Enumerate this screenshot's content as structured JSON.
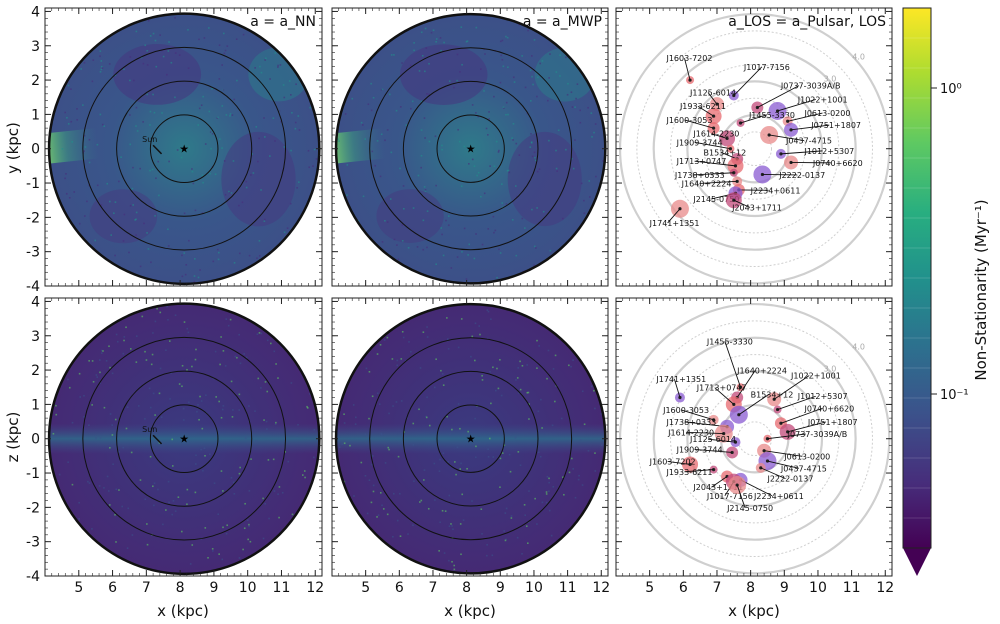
{
  "figure": {
    "xlabel": "x (kpc)",
    "ylabel_top": "y (kpc)",
    "ylabel_bottom": "z (kpc)",
    "colorbar_label": "Non-Stationarity (Myr⁻¹)",
    "colorbar_ticks": [
      "10⁰",
      "10⁻¹"
    ],
    "panel_titles": [
      "a = a_NN",
      "a = a_MWP",
      "a_LOS = a_Pulsar, LOS"
    ],
    "sun_label_panel_top": "Sun",
    "sun_label_panel_bottom": "Sun",
    "ring_labels": [
      "4.0",
      "3.0"
    ]
  },
  "chart_data": [
    {
      "type": "heatmap",
      "panel": "top-left",
      "title": "a = a_NN",
      "xlabel": "",
      "ylabel": "y (kpc)",
      "xlim": [
        4,
        12.2
      ],
      "ylim": [
        -4,
        4.1
      ],
      "xticks": [
        5,
        6,
        7,
        8,
        9,
        10,
        11,
        12
      ],
      "yticks": [
        -4,
        -3,
        -2,
        -1,
        0,
        1,
        2,
        3,
        4
      ],
      "center_star": [
        8.12,
        0
      ],
      "ring_radii_kpc": [
        1,
        2,
        3,
        4
      ],
      "colormap": "viridis",
      "colormap_stops": [
        "#440154",
        "#472d7b",
        "#3b528b",
        "#2c728e",
        "#21918c",
        "#28ae80",
        "#5ec962",
        "#addc30",
        "#fde725"
      ]
    },
    {
      "type": "heatmap",
      "panel": "top-middle",
      "title": "a = a_MWP",
      "xlim": [
        4,
        12.2
      ],
      "ylim": [
        -4,
        4.1
      ],
      "xticks": [
        5,
        6,
        7,
        8,
        9,
        10,
        11,
        12
      ],
      "center_star": [
        8.12,
        0
      ],
      "ring_radii_kpc": [
        1,
        2,
        3,
        4
      ]
    },
    {
      "type": "scatter",
      "panel": "top-right",
      "title": "a_LOS = a_Pulsar, LOS",
      "xlim": [
        4,
        12.2
      ],
      "ylim": [
        -4,
        4.1
      ],
      "xticks": [
        5,
        6,
        7,
        8,
        9,
        10,
        11,
        12
      ],
      "pulsars": [
        {
          "name": "J1603-7202",
          "x": 6.2,
          "y": 2.0,
          "lx": 5.5,
          "ly": 2.55
        },
        {
          "name": "J1017-7156",
          "x": 7.5,
          "y": 1.55,
          "lx": 7.8,
          "ly": 2.3
        },
        {
          "name": "J0737-3039A/B",
          "x": 8.2,
          "y": 1.2,
          "lx": 8.9,
          "ly": 1.75
        },
        {
          "name": "J1125-6014",
          "x": 7.0,
          "y": 1.3,
          "lx": 6.2,
          "ly": 1.55
        },
        {
          "name": "J1933-6211",
          "x": 6.9,
          "y": 0.95,
          "lx": 5.9,
          "ly": 1.15
        },
        {
          "name": "J1022+1001",
          "x": 8.8,
          "y": 1.1,
          "lx": 9.4,
          "ly": 1.35
        },
        {
          "name": "J1455-3330",
          "x": 7.7,
          "y": 0.75,
          "lx": 7.95,
          "ly": 0.9
        },
        {
          "name": "J0613-0200",
          "x": 9.1,
          "y": 0.8,
          "lx": 9.6,
          "ly": 0.95
        },
        {
          "name": "J1600-3053",
          "x": 6.9,
          "y": 0.6,
          "lx": 5.5,
          "ly": 0.75
        },
        {
          "name": "J0751+1807",
          "x": 9.2,
          "y": 0.55,
          "lx": 9.8,
          "ly": 0.6
        },
        {
          "name": "J1614-2230",
          "x": 7.3,
          "y": 0.3,
          "lx": 6.3,
          "ly": 0.35
        },
        {
          "name": "J0437-4715",
          "x": 8.55,
          "y": 0.4,
          "lx": 9.05,
          "ly": 0.15
        },
        {
          "name": "J1909-3744",
          "x": 7.4,
          "y": 0.0,
          "lx": 5.8,
          "ly": 0.1
        },
        {
          "name": "J1012+5307",
          "x": 8.9,
          "y": -0.15,
          "lx": 9.6,
          "ly": -0.15
        },
        {
          "name": "B1534+12",
          "x": 7.6,
          "y": -0.3,
          "lx": 6.6,
          "ly": -0.2
        },
        {
          "name": "J0740+6620",
          "x": 9.2,
          "y": -0.4,
          "lx": 9.85,
          "ly": -0.5
        },
        {
          "name": "J1713+0747",
          "x": 7.55,
          "y": -0.5,
          "lx": 5.8,
          "ly": -0.45
        },
        {
          "name": "J2222-0137",
          "x": 8.35,
          "y": -0.75,
          "lx": 8.85,
          "ly": -0.85
        },
        {
          "name": "J1738+0333",
          "x": 7.5,
          "y": -0.7,
          "lx": 5.75,
          "ly": -0.85
        },
        {
          "name": "J1640+2224",
          "x": 7.6,
          "y": -0.95,
          "lx": 5.95,
          "ly": -1.1
        },
        {
          "name": "J2234+0611",
          "x": 7.65,
          "y": -1.2,
          "lx": 8.0,
          "ly": -1.3
        },
        {
          "name": "J2145-0750",
          "x": 7.55,
          "y": -1.3,
          "lx": 6.3,
          "ly": -1.55
        },
        {
          "name": "J2043+1711",
          "x": 7.5,
          "y": -1.5,
          "lx": 7.45,
          "ly": -1.8
        },
        {
          "name": "J1741+1351",
          "x": 5.9,
          "y": -1.75,
          "lx": 5.0,
          "ly": -2.25
        }
      ]
    },
    {
      "type": "heatmap",
      "panel": "bottom-left",
      "xlabel": "x (kpc)",
      "ylabel": "z (kpc)",
      "xlim": [
        4,
        12.2
      ],
      "ylim": [
        -4,
        4.1
      ],
      "xticks": [
        5,
        6,
        7,
        8,
        9,
        10,
        11,
        12
      ],
      "yticks": [
        -4,
        -3,
        -2,
        -1,
        0,
        1,
        2,
        3,
        4
      ],
      "center_star": [
        8.12,
        0
      ],
      "ring_radii_kpc": [
        1,
        2,
        3,
        4
      ]
    },
    {
      "type": "heatmap",
      "panel": "bottom-middle",
      "xlabel": "x (kpc)",
      "xlim": [
        4,
        12.2
      ],
      "ylim": [
        -4,
        4.1
      ],
      "xticks": [
        5,
        6,
        7,
        8,
        9,
        10,
        11,
        12
      ],
      "center_star": [
        8.12,
        0
      ],
      "ring_radii_kpc": [
        1,
        2,
        3,
        4
      ]
    },
    {
      "type": "scatter",
      "panel": "bottom-right",
      "xlabel": "x (kpc)",
      "xlim": [
        4,
        12.2
      ],
      "ylim": [
        -4,
        4.1
      ],
      "xticks": [
        5,
        6,
        7,
        8,
        9,
        10,
        11,
        12
      ],
      "pulsars": [
        {
          "name": "J1455-3330",
          "x": 7.7,
          "y": 1.5,
          "lx": 6.7,
          "ly": 2.75
        },
        {
          "name": "J1741+1351",
          "x": 5.9,
          "y": 1.2,
          "lx": 5.2,
          "ly": 1.65
        },
        {
          "name": "J1640+2224",
          "x": 7.6,
          "y": 1.2,
          "lx": 7.6,
          "ly": 1.9
        },
        {
          "name": "J1022+1001",
          "x": 8.7,
          "y": 1.15,
          "lx": 9.2,
          "ly": 1.75
        },
        {
          "name": "J1713+0747",
          "x": 7.5,
          "y": 1.0,
          "lx": 6.4,
          "ly": 1.4
        },
        {
          "name": "B1534+12",
          "x": 7.65,
          "y": 0.7,
          "lx": 8.0,
          "ly": 1.2
        },
        {
          "name": "J1012+5307",
          "x": 8.8,
          "y": 0.85,
          "lx": 9.4,
          "ly": 1.15
        },
        {
          "name": "J1600-3053",
          "x": 6.9,
          "y": 0.55,
          "lx": 5.4,
          "ly": 0.75
        },
        {
          "name": "J0740+6620",
          "x": 8.9,
          "y": 0.45,
          "lx": 9.6,
          "ly": 0.8
        },
        {
          "name": "J1738+0333",
          "x": 7.3,
          "y": 0.35,
          "lx": 5.5,
          "ly": 0.4
        },
        {
          "name": "J0751+1807",
          "x": 9.1,
          "y": 0.2,
          "lx": 9.7,
          "ly": 0.4
        },
        {
          "name": "J1614-2230",
          "x": 7.2,
          "y": 0.15,
          "lx": 5.55,
          "ly": 0.1
        },
        {
          "name": "J0737-3039A/B",
          "x": 8.5,
          "y": 0.0,
          "lx": 9.1,
          "ly": 0.05
        },
        {
          "name": "J1125-6014",
          "x": 7.55,
          "y": -0.1,
          "lx": 6.2,
          "ly": -0.1
        },
        {
          "name": "J1909-3744",
          "x": 7.45,
          "y": -0.4,
          "lx": 5.8,
          "ly": -0.4
        },
        {
          "name": "J0613-0200",
          "x": 8.4,
          "y": -0.35,
          "lx": 9.0,
          "ly": -0.6
        },
        {
          "name": "J1603-7202",
          "x": 6.2,
          "y": -0.75,
          "lx": 5.0,
          "ly": -0.75
        },
        {
          "name": "J0437-4715",
          "x": 8.5,
          "y": -0.65,
          "lx": 8.9,
          "ly": -0.95
        },
        {
          "name": "J1933-6211",
          "x": 6.9,
          "y": -0.9,
          "lx": 5.5,
          "ly": -1.05
        },
        {
          "name": "J2222-0137",
          "x": 8.3,
          "y": -0.85,
          "lx": 8.5,
          "ly": -1.25
        },
        {
          "name": "J2043+1711",
          "x": 7.3,
          "y": -1.1,
          "lx": 6.3,
          "ly": -1.5
        },
        {
          "name": "J2234+0611",
          "x": 7.7,
          "y": -1.2,
          "lx": 8.1,
          "ly": -1.75
        },
        {
          "name": "J1017-7156",
          "x": 7.5,
          "y": -1.25,
          "lx": 6.7,
          "ly": -1.75
        },
        {
          "name": "J2145-0750",
          "x": 7.6,
          "y": -1.35,
          "lx": 7.3,
          "ly": -2.1
        }
      ]
    }
  ]
}
